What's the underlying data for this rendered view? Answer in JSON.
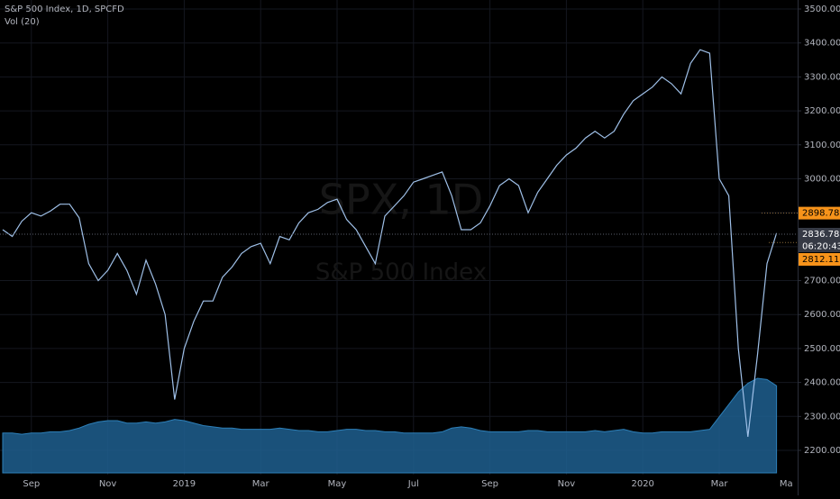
{
  "chart_data": {
    "type": "line",
    "title": "S&P 500 Index, 1D, SPCFD",
    "watermark": "SPX, 1D",
    "watermark_subtitle": "S&P 500 Index",
    "categories": [
      null,
      null,
      null,
      "Sep",
      null,
      null,
      null,
      null,
      null,
      null,
      null,
      "Nov",
      null,
      null,
      null,
      null,
      null,
      null,
      null,
      "2019",
      null,
      null,
      null,
      null,
      null,
      null,
      null,
      "Mar",
      null,
      null,
      null,
      null,
      null,
      null,
      null,
      "May",
      null,
      null,
      null,
      null,
      null,
      null,
      null,
      "Jul",
      null,
      null,
      null,
      null,
      null,
      null,
      null,
      "Sep",
      null,
      null,
      null,
      null,
      null,
      null,
      null,
      "Nov",
      null,
      null,
      null,
      null,
      null,
      null,
      null,
      "2020",
      null,
      null,
      null,
      null,
      null,
      null,
      null,
      "Mar",
      null,
      null,
      null,
      null,
      null,
      null,
      "Ma"
    ],
    "series": [
      {
        "name": "S&P 500 Index",
        "color": "#9fc0e8",
        "values": [
          2850,
          2830,
          2875,
          2900,
          2890,
          2905,
          2925,
          2925,
          2885,
          2750,
          2700,
          2730,
          2780,
          2730,
          2660,
          2760,
          2690,
          2600,
          2350,
          2500,
          2580,
          2640,
          2640,
          2710,
          2740,
          2780,
          2800,
          2810,
          2750,
          2830,
          2820,
          2870,
          2900,
          2910,
          2930,
          2940,
          2880,
          2850,
          2800,
          2750,
          2890,
          2920,
          2950,
          2990,
          3000,
          3010,
          3020,
          2950,
          2850,
          2850,
          2870,
          2920,
          2980,
          3000,
          2980,
          2900,
          2960,
          3000,
          3040,
          3070,
          3090,
          3120,
          3140,
          3120,
          3140,
          3190,
          3230,
          3250,
          3270,
          3300,
          3280,
          3250,
          3340,
          3380,
          3370,
          3000,
          2950,
          2500,
          2240,
          2480,
          2750,
          2840,
          null
        ]
      },
      {
        "name": "Vol (20)",
        "color": "#1f5f8f",
        "values": [
          3200000000,
          3200000000,
          3100000000,
          3200000000,
          3200000000,
          3300000000,
          3300000000,
          3400000000,
          3600000000,
          3900000000,
          4100000000,
          4200000000,
          4200000000,
          4000000000,
          4000000000,
          4100000000,
          4000000000,
          4100000000,
          4300000000,
          4200000000,
          4000000000,
          3800000000,
          3700000000,
          3600000000,
          3600000000,
          3500000000,
          3500000000,
          3500000000,
          3500000000,
          3600000000,
          3500000000,
          3400000000,
          3400000000,
          3300000000,
          3300000000,
          3400000000,
          3500000000,
          3500000000,
          3400000000,
          3400000000,
          3300000000,
          3300000000,
          3200000000,
          3200000000,
          3200000000,
          3200000000,
          3300000000,
          3600000000,
          3700000000,
          3600000000,
          3400000000,
          3300000000,
          3300000000,
          3300000000,
          3300000000,
          3400000000,
          3400000000,
          3300000000,
          3300000000,
          3300000000,
          3300000000,
          3300000000,
          3400000000,
          3300000000,
          3400000000,
          3500000000,
          3300000000,
          3200000000,
          3200000000,
          3300000000,
          3300000000,
          3300000000,
          3300000000,
          3400000000,
          3500000000,
          4500000000,
          5500000000,
          6500000000,
          7200000000,
          7600000000,
          7500000000,
          7000000000,
          null
        ]
      }
    ],
    "ylim": [
      2200,
      3500
    ],
    "yticks": [
      {
        "value": 3500,
        "label": "3500.00"
      },
      {
        "value": 3400,
        "label": "3400.00"
      },
      {
        "value": 3300,
        "label": "3300.00"
      },
      {
        "value": 3200,
        "label": "3200.00"
      },
      {
        "value": 3100,
        "label": "3100.00"
      },
      {
        "value": 3000,
        "label": "3000.00"
      },
      {
        "value": 2900,
        "label": "2900.00"
      },
      {
        "value": 2800,
        "label": "2800.00"
      },
      {
        "value": 2700,
        "label": "2700.00"
      },
      {
        "value": 2600,
        "label": "2600.00"
      },
      {
        "value": 2500,
        "label": "2500.00"
      },
      {
        "value": 2400,
        "label": "2400.00"
      },
      {
        "value": 2300,
        "label": "2300.00"
      },
      {
        "value": 2200,
        "label": "2200.00"
      }
    ],
    "grid": true,
    "price_markers": [
      {
        "value": 2898.78,
        "color": "#f7931a"
      },
      {
        "value": 2836.78,
        "color": "#363a45"
      },
      {
        "value": 2812.11,
        "color": "#f7931a"
      }
    ],
    "countdown": "06:20:43"
  }
}
